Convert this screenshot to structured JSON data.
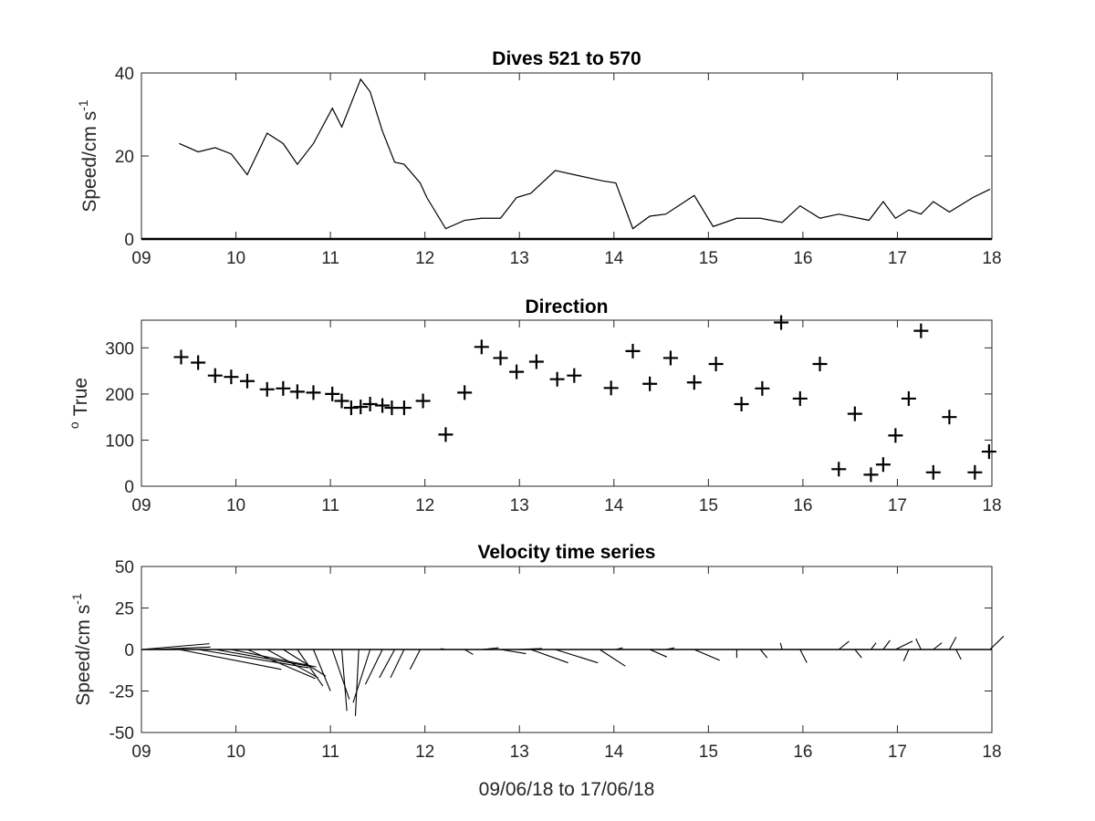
{
  "chart_data": [
    {
      "type": "line",
      "title": "Dives 521 to 570",
      "ylabel": "Speed/cm s",
      "ylabel_sup": "-1",
      "xlim": [
        9,
        18
      ],
      "ylim": [
        0,
        40
      ],
      "x_ticks": [
        "09",
        "10",
        "11",
        "12",
        "13",
        "14",
        "15",
        "16",
        "17",
        "18"
      ],
      "y_ticks": [
        "0",
        "20",
        "40"
      ],
      "grid": false,
      "x": [
        9.4,
        9.6,
        9.78,
        9.95,
        10.12,
        10.33,
        10.5,
        10.65,
        10.82,
        11.02,
        11.12,
        11.32,
        11.42,
        11.55,
        11.68,
        11.78,
        11.95,
        12.02,
        12.22,
        12.42,
        12.6,
        12.8,
        12.97,
        13.12,
        13.38,
        13.88,
        14.02,
        14.2,
        14.38,
        14.55,
        14.85,
        15.05,
        15.3,
        15.55,
        15.78,
        15.97,
        16.18,
        16.38,
        16.7,
        16.85,
        16.98,
        17.12,
        17.25,
        17.38,
        17.55,
        17.8,
        17.98
      ],
      "values": [
        23,
        21,
        22,
        20.5,
        15.5,
        25.5,
        23,
        18,
        23,
        31.5,
        27,
        38.5,
        35.5,
        26,
        18.5,
        18,
        13.5,
        10,
        2.5,
        4.5,
        5,
        5,
        10,
        11,
        16.5,
        14,
        13.5,
        2.5,
        5.5,
        6,
        10.5,
        3,
        5,
        5,
        4,
        8,
        5,
        6,
        4.5,
        9,
        5,
        7,
        6,
        9,
        6.5,
        10,
        12
      ]
    },
    {
      "type": "scatter",
      "title": "Direction",
      "ylabel": "True",
      "ylabel_sup": "o",
      "xlim": [
        9,
        18
      ],
      "ylim": [
        0,
        360
      ],
      "x_ticks": [
        "09",
        "10",
        "11",
        "12",
        "13",
        "14",
        "15",
        "16",
        "17",
        "18"
      ],
      "y_ticks": [
        "0",
        "100",
        "200",
        "300"
      ],
      "grid": false,
      "marker": "+",
      "x": [
        9.42,
        9.6,
        9.78,
        9.95,
        10.12,
        10.33,
        10.5,
        10.65,
        10.82,
        11.02,
        11.12,
        11.22,
        11.32,
        11.42,
        11.55,
        11.65,
        11.78,
        11.98,
        12.22,
        12.42,
        12.6,
        12.8,
        12.97,
        13.18,
        13.4,
        13.58,
        13.97,
        14.2,
        14.38,
        14.6,
        14.85,
        15.08,
        15.35,
        15.57,
        15.77,
        15.97,
        16.18,
        16.38,
        16.55,
        16.72,
        16.85,
        16.98,
        17.12,
        17.25,
        17.38,
        17.55,
        17.82,
        17.97
      ],
      "values": [
        280,
        268,
        240,
        237,
        228,
        210,
        212,
        205,
        203,
        200,
        185,
        170,
        172,
        178,
        175,
        170,
        170,
        185,
        112,
        203,
        302,
        278,
        248,
        270,
        232,
        240,
        213,
        293,
        222,
        278,
        225,
        265,
        178,
        212,
        355,
        190,
        265,
        37,
        157,
        25,
        47,
        110,
        190,
        337,
        30,
        150,
        30,
        75
      ]
    },
    {
      "type": "line",
      "subtype": "stick-vector",
      "title": "Velocity time series",
      "ylabel": "Speed/cm s",
      "ylabel_sup": "-1",
      "xlabel": "09/06/18 to 17/06/18",
      "xlim": [
        9,
        18
      ],
      "ylim": [
        -50,
        50
      ],
      "x_ticks": [
        "09",
        "10",
        "11",
        "12",
        "13",
        "14",
        "15",
        "16",
        "17",
        "18"
      ],
      "y_ticks": [
        "50",
        "25",
        "0",
        "-25",
        "-50"
      ],
      "grid": false,
      "sticks": [
        {
          "x": 9.0,
          "u": 4.0,
          "v": 3.5
        },
        {
          "x": 9.1,
          "u": 3.5,
          "v": 1.5
        },
        {
          "x": 9.4,
          "u": 6.0,
          "v": -12.0
        },
        {
          "x": 9.6,
          "u": 6.5,
          "v": -11.0
        },
        {
          "x": 9.78,
          "u": 5.5,
          "v": -10.0
        },
        {
          "x": 9.95,
          "u": 5.0,
          "v": -10.5
        },
        {
          "x": 10.12,
          "u": 4.0,
          "v": -17.5
        },
        {
          "x": 10.33,
          "u": 3.0,
          "v": -17.0
        },
        {
          "x": 10.5,
          "u": 2.5,
          "v": -16.0
        },
        {
          "x": 10.65,
          "u": 1.5,
          "v": -22.0
        },
        {
          "x": 10.82,
          "u": 1.0,
          "v": -25.0
        },
        {
          "x": 11.02,
          "u": 1.0,
          "v": -30.0
        },
        {
          "x": 11.12,
          "u": 0.3,
          "v": -37.0
        },
        {
          "x": 11.3,
          "u": -0.2,
          "v": -40.0
        },
        {
          "x": 11.42,
          "u": -1.0,
          "v": -32.0
        },
        {
          "x": 11.55,
          "u": -1.0,
          "v": -21.0
        },
        {
          "x": 11.68,
          "u": -0.9,
          "v": -17.0
        },
        {
          "x": 11.78,
          "u": -0.8,
          "v": -17.0
        },
        {
          "x": 11.95,
          "u": -0.6,
          "v": -12.0
        },
        {
          "x": 12.22,
          "u": -0.3,
          "v": 0.5
        },
        {
          "x": 12.42,
          "u": 0.5,
          "v": -3.0
        },
        {
          "x": 12.6,
          "u": 1.0,
          "v": 1.0
        },
        {
          "x": 12.8,
          "u": 1.5,
          "v": -2.5
        },
        {
          "x": 12.97,
          "u": 1.5,
          "v": 0.6
        },
        {
          "x": 13.12,
          "u": 2.2,
          "v": -8.0
        },
        {
          "x": 13.38,
          "u": 2.5,
          "v": -8.0
        },
        {
          "x": 13.85,
          "u": 1.5,
          "v": -10.0
        },
        {
          "x": 14.02,
          "u": 0.4,
          "v": 1.0
        },
        {
          "x": 14.38,
          "u": 1.0,
          "v": -4.5
        },
        {
          "x": 14.55,
          "u": 0.5,
          "v": 1.0
        },
        {
          "x": 14.85,
          "u": 1.5,
          "v": -6.5
        },
        {
          "x": 15.3,
          "u": 0.0,
          "v": -5.0
        },
        {
          "x": 15.55,
          "u": 0.4,
          "v": -5.0
        },
        {
          "x": 15.78,
          "u": -0.1,
          "v": 4.0
        },
        {
          "x": 15.97,
          "u": 0.4,
          "v": -8.0
        },
        {
          "x": 16.38,
          "u": 0.6,
          "v": 5.0
        },
        {
          "x": 16.55,
          "u": 0.4,
          "v": -5.0
        },
        {
          "x": 16.72,
          "u": 0.3,
          "v": 4.0
        },
        {
          "x": 16.85,
          "u": 0.4,
          "v": 5.5
        },
        {
          "x": 16.98,
          "u": 1.0,
          "v": 5.0
        },
        {
          "x": 17.12,
          "u": -0.3,
          "v": -7.0
        },
        {
          "x": 17.25,
          "u": -0.3,
          "v": 6.5
        },
        {
          "x": 17.38,
          "u": 0.5,
          "v": 4.0
        },
        {
          "x": 17.55,
          "u": 0.4,
          "v": 7.5
        },
        {
          "x": 17.62,
          "u": 0.3,
          "v": -6.0
        },
        {
          "x": 17.98,
          "u": 0.8,
          "v": 8.0
        }
      ]
    }
  ]
}
